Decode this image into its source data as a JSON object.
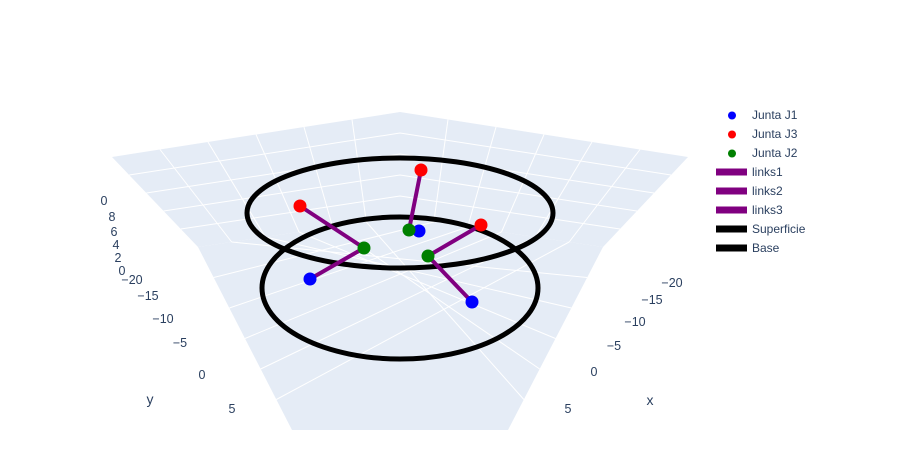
{
  "chart_data": {
    "type": "scatter3d",
    "title": "",
    "axes": {
      "x": {
        "title": "x",
        "ticks": [
          "−20",
          "−15",
          "−10",
          "−5",
          "0",
          "5"
        ]
      },
      "y": {
        "title": "y",
        "ticks": [
          "−20",
          "−15",
          "−10",
          "−5",
          "0",
          "5"
        ]
      },
      "z": {
        "title": "",
        "ticks": [
          "0",
          "2",
          "4",
          "6",
          "8",
          "0"
        ]
      }
    },
    "colors": {
      "scene_background": "#e5ecf6",
      "grid": "#ffffff",
      "tick_text": "#2a3f5f",
      "blue": "#0000ff",
      "red": "#ff0000",
      "green": "#008000",
      "purple": "#800080",
      "black": "#000000"
    },
    "series": [
      {
        "name": "Junta J1",
        "kind": "markers",
        "color": "#0000ff"
      },
      {
        "name": "Junta J3",
        "kind": "markers",
        "color": "#ff0000"
      },
      {
        "name": "Junta J2",
        "kind": "markers",
        "color": "#008000"
      },
      {
        "name": "links1",
        "kind": "lines",
        "color": "#800080"
      },
      {
        "name": "links2",
        "kind": "lines",
        "color": "#800080"
      },
      {
        "name": "links3",
        "kind": "lines",
        "color": "#800080"
      },
      {
        "name": "Superficie",
        "kind": "lines",
        "color": "#000000"
      },
      {
        "name": "Base",
        "kind": "lines",
        "color": "#000000"
      }
    ],
    "legend_position": "right"
  }
}
